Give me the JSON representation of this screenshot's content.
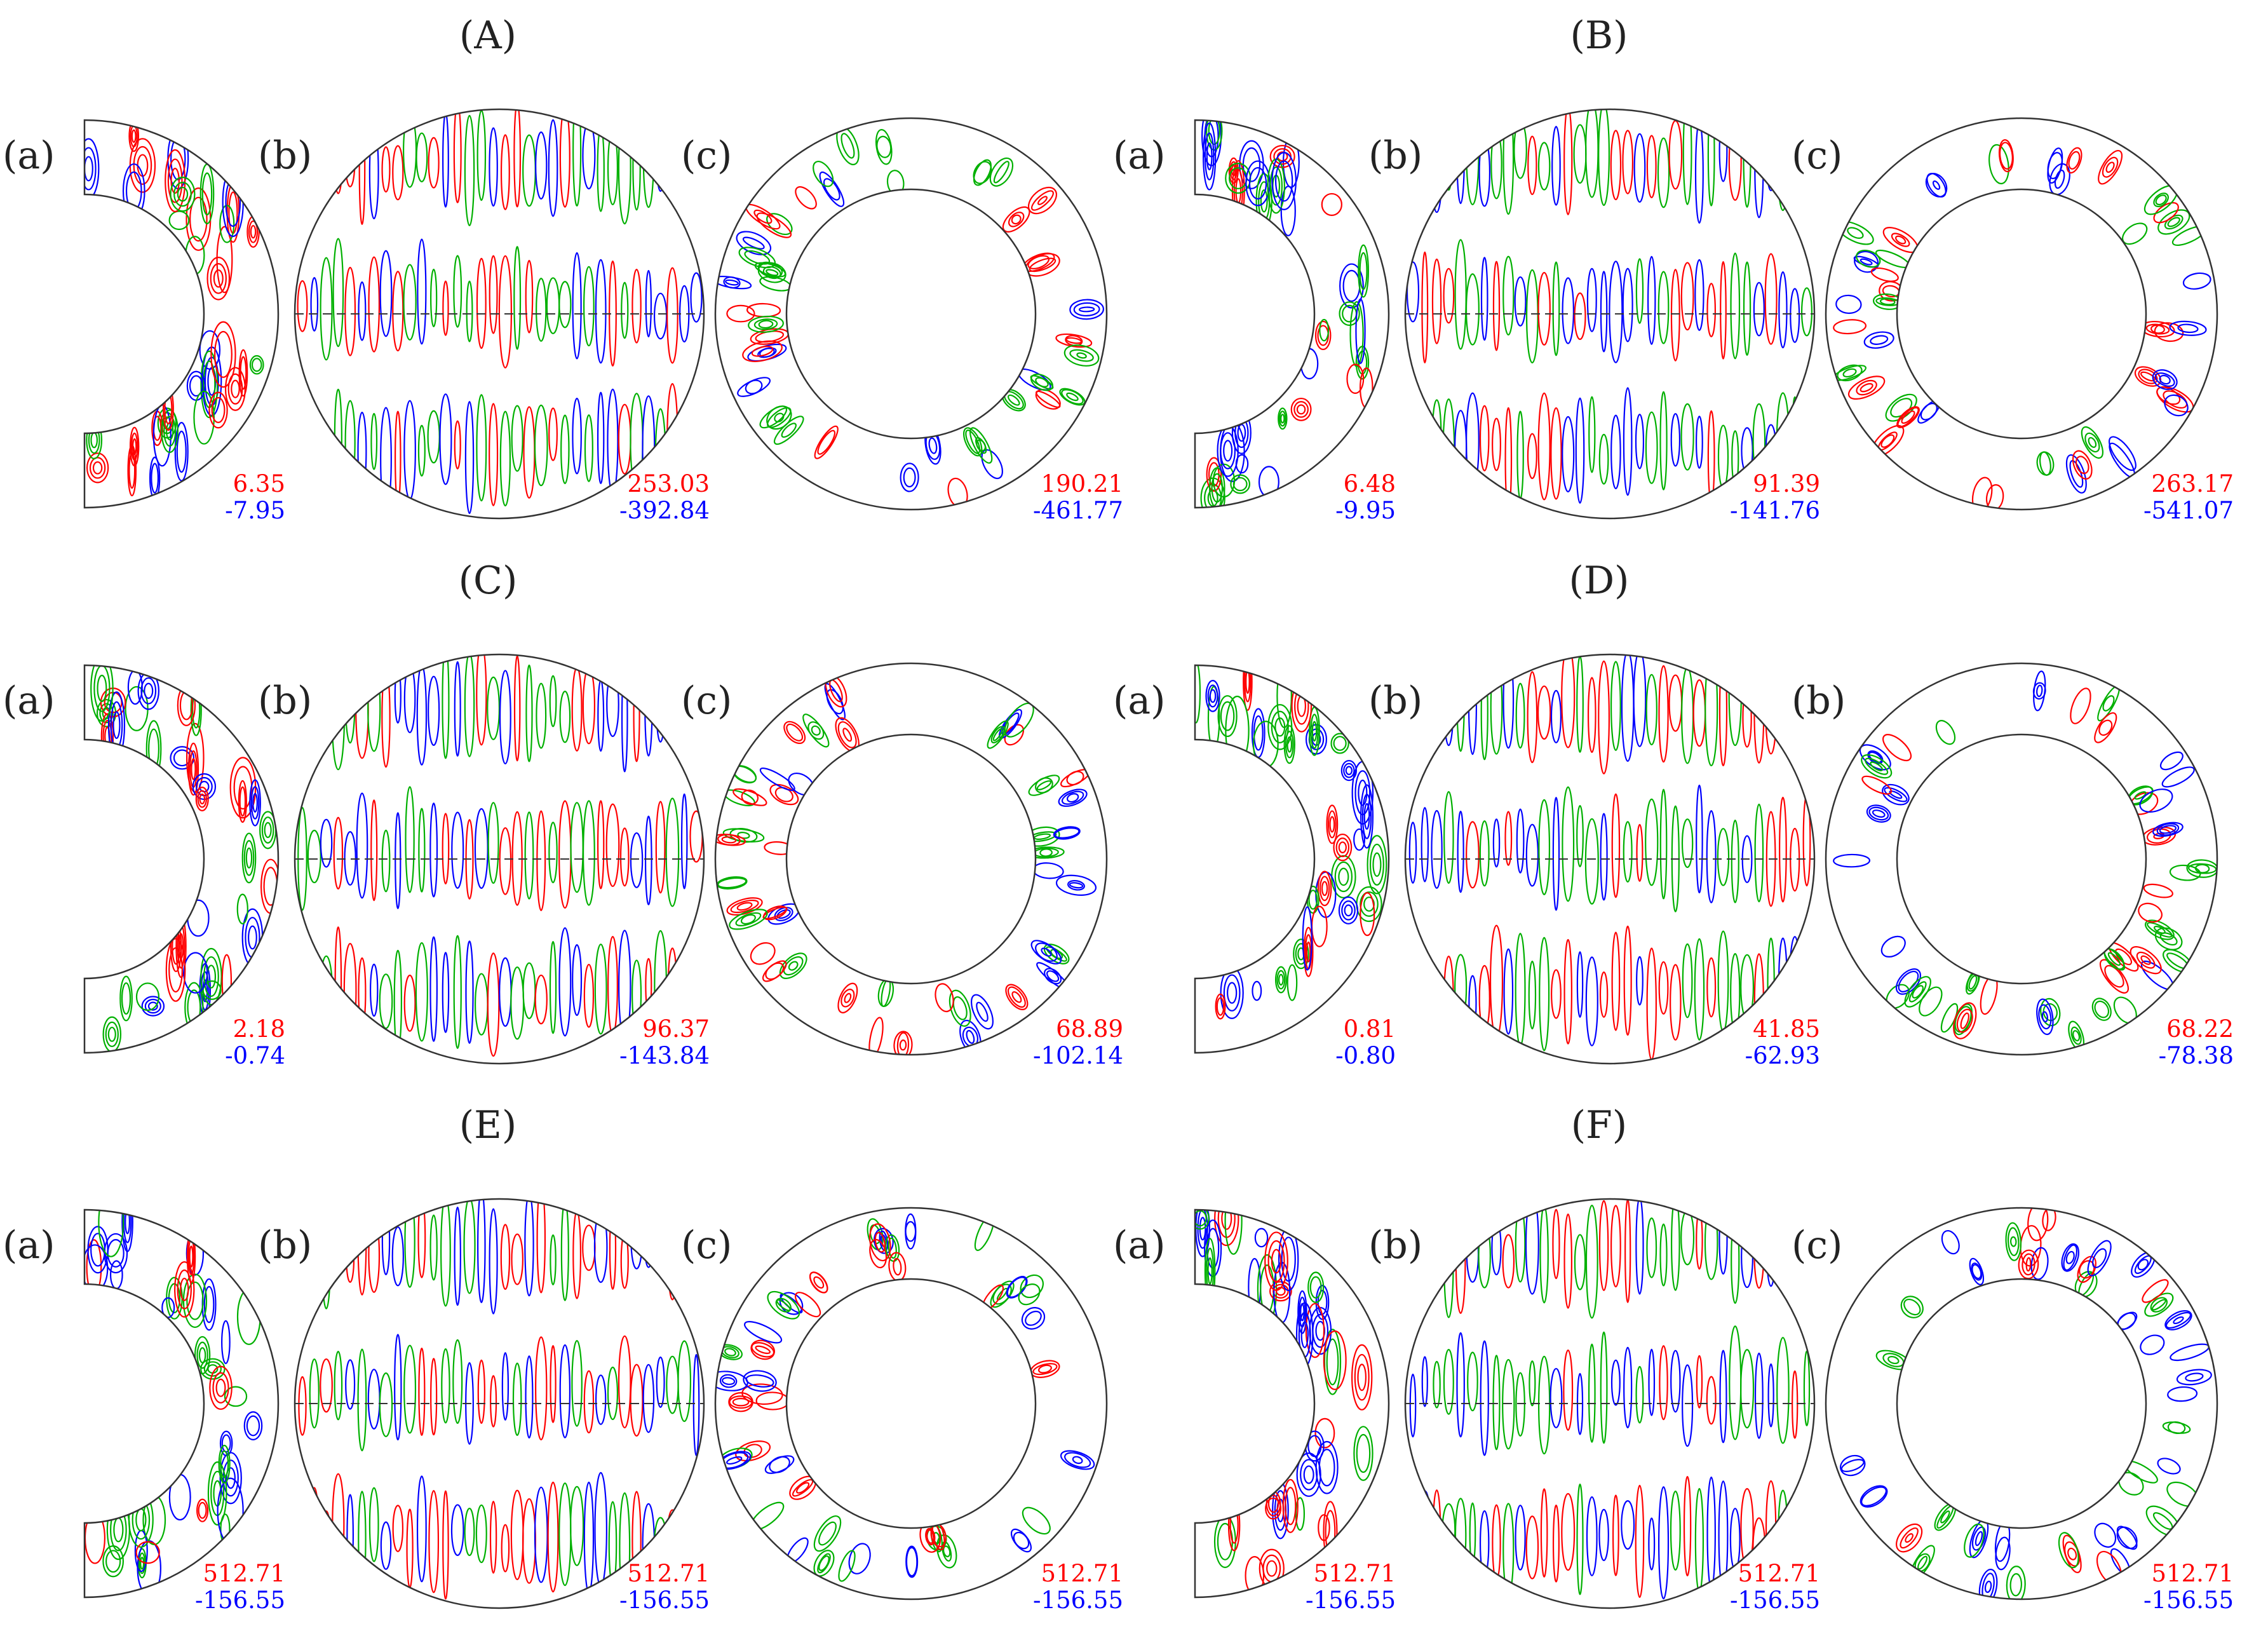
{
  "figure": {
    "colors": {
      "positive": "#ff0000",
      "negative": "#0000ff",
      "zero": "#00b000",
      "outline": "#333333"
    },
    "panels": [
      {
        "label": "(A)",
        "subplots": [
          {
            "kind": "meridional",
            "label": "(a)",
            "max": "6.35",
            "min": "-7.95"
          },
          {
            "kind": "sphere",
            "label": "(b)",
            "max": "253.03",
            "min": "-392.84"
          },
          {
            "kind": "annulus",
            "label": "(c)",
            "max": "190.21",
            "min": "-461.77"
          }
        ]
      },
      {
        "label": "(B)",
        "subplots": [
          {
            "kind": "meridional",
            "label": "(a)",
            "max": "6.48",
            "min": "-9.95"
          },
          {
            "kind": "sphere",
            "label": "(b)",
            "max": "91.39",
            "min": "-141.76"
          },
          {
            "kind": "annulus",
            "label": "(c)",
            "max": "263.17",
            "min": "-541.07"
          }
        ]
      },
      {
        "label": "(C)",
        "subplots": [
          {
            "kind": "meridional",
            "label": "(a)",
            "max": "2.18",
            "min": "-0.74"
          },
          {
            "kind": "sphere",
            "label": "(b)",
            "max": "96.37",
            "min": "-143.84"
          },
          {
            "kind": "annulus",
            "label": "(c)",
            "max": "68.89",
            "min": "-102.14"
          }
        ]
      },
      {
        "label": "(D)",
        "subplots": [
          {
            "kind": "meridional",
            "label": "(a)",
            "max": "0.81",
            "min": "-0.80"
          },
          {
            "kind": "sphere",
            "label": "(b)",
            "max": "41.85",
            "min": "-62.93"
          },
          {
            "kind": "annulus",
            "label": "(b)",
            "max": "68.22",
            "min": "-78.38"
          }
        ]
      },
      {
        "label": "(E)",
        "subplots": [
          {
            "kind": "meridional",
            "label": "(a)",
            "max": "512.71",
            "min": "-156.55"
          },
          {
            "kind": "sphere",
            "label": "(b)",
            "max": "512.71",
            "min": "-156.55"
          },
          {
            "kind": "annulus",
            "label": "(c)",
            "max": "512.71",
            "min": "-156.55"
          }
        ]
      },
      {
        "label": "(F)",
        "subplots": [
          {
            "kind": "meridional",
            "label": "(a)",
            "max": "512.71",
            "min": "-156.55"
          },
          {
            "kind": "sphere",
            "label": "(b)",
            "max": "512.71",
            "min": "-156.55"
          },
          {
            "kind": "annulus",
            "label": "(c)",
            "max": "512.71",
            "min": "-156.55"
          }
        ]
      }
    ]
  }
}
